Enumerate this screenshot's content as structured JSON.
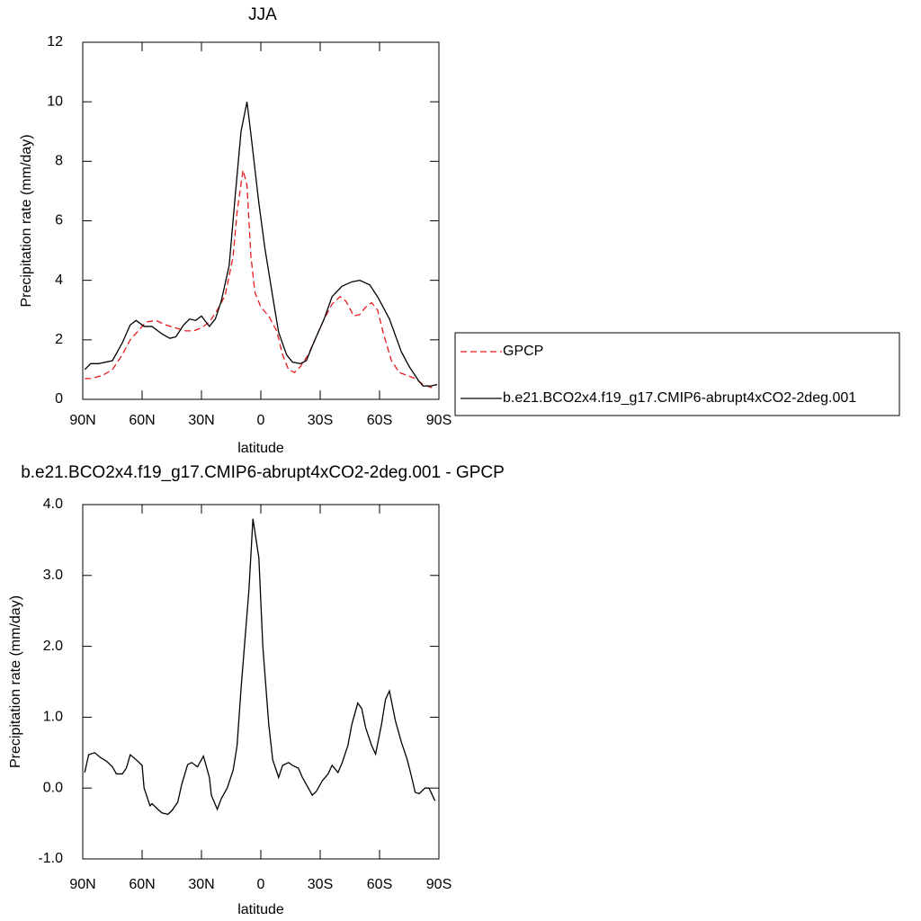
{
  "chart_data": [
    {
      "type": "line",
      "title": "JJA",
      "xlabel": "latitude",
      "ylabel": "Precipitation rate (mm/day)",
      "xlim": [
        90,
        -90
      ],
      "ylim": [
        0,
        12
      ],
      "xticks": [
        {
          "value": 90,
          "label": "90N"
        },
        {
          "value": 60,
          "label": "60N"
        },
        {
          "value": 30,
          "label": "30N"
        },
        0,
        {
          "value": -30,
          "label": "30S"
        },
        {
          "value": -60,
          "label": "60S"
        },
        {
          "value": -90,
          "label": "90S"
        }
      ],
      "yticks": [
        0,
        2,
        4,
        6,
        8,
        10,
        12
      ],
      "legend": "right",
      "series": [
        {
          "name": "GPCP",
          "color": "#e8191c",
          "dash": "dashed",
          "x": [
            89,
            86,
            80,
            75,
            70,
            66,
            62,
            58,
            53,
            48,
            43,
            38,
            34,
            30,
            26,
            22,
            18,
            14,
            12,
            9,
            7,
            5,
            3,
            0,
            -4,
            -8,
            -11,
            -14,
            -17,
            -20,
            -24,
            -28,
            -32,
            -36,
            -40,
            -43,
            -47,
            -50,
            -53,
            -56,
            -59,
            -62,
            -66,
            -70,
            -74,
            -78,
            -82,
            -86,
            -89
          ],
          "values": [
            0.7,
            0.7,
            0.8,
            1.0,
            1.5,
            2.0,
            2.3,
            2.6,
            2.65,
            2.5,
            2.4,
            2.3,
            2.3,
            2.4,
            2.6,
            3.0,
            3.5,
            4.8,
            6.3,
            7.7,
            7.2,
            4.8,
            3.6,
            3.1,
            2.8,
            2.3,
            1.5,
            1.0,
            0.9,
            1.1,
            1.5,
            2.1,
            2.7,
            3.2,
            3.45,
            3.3,
            2.8,
            2.85,
            3.1,
            3.25,
            3.0,
            2.2,
            1.3,
            0.9,
            0.8,
            0.7,
            0.5,
            0.4,
            0.5
          ]
        },
        {
          "name": "b.e21.BCO2x4.f19_g17.CMIP6-abrupt4xCO2-2deg.001",
          "color": "#000000",
          "dash": "solid",
          "x": [
            89,
            86,
            82,
            75,
            70,
            66,
            63,
            59,
            55,
            50,
            46,
            43,
            39,
            36,
            33,
            30,
            26,
            23,
            20,
            16,
            13,
            10,
            7,
            5,
            1,
            -2,
            -6,
            -9,
            -13,
            -16,
            -20,
            -23,
            -27,
            -32,
            -36,
            -41,
            -46,
            -50,
            -55,
            -59,
            -65,
            -71,
            -75,
            -80,
            -82,
            -86,
            -89
          ],
          "values": [
            1.0,
            1.2,
            1.2,
            1.3,
            1.9,
            2.5,
            2.65,
            2.45,
            2.45,
            2.2,
            2.05,
            2.1,
            2.5,
            2.7,
            2.65,
            2.8,
            2.45,
            2.7,
            3.3,
            4.5,
            6.8,
            9.0,
            10.0,
            8.9,
            6.6,
            5.1,
            3.45,
            2.25,
            1.5,
            1.25,
            1.2,
            1.3,
            1.95,
            2.7,
            3.45,
            3.8,
            3.95,
            4.0,
            3.85,
            3.45,
            2.7,
            1.6,
            1.1,
            0.6,
            0.45,
            0.45,
            0.5
          ]
        }
      ]
    },
    {
      "type": "line",
      "title": "b.e21.BCO2x4.f19_g17.CMIP6-abrupt4xCO2-2deg.001 - GPCP",
      "xlabel": "latitude",
      "ylabel": "Precipitation rate (mm/day)",
      "xlim": [
        90,
        -90
      ],
      "ylim": [
        -1,
        4
      ],
      "xticks": [
        {
          "value": 90,
          "label": "90N"
        },
        {
          "value": 60,
          "label": "60N"
        },
        {
          "value": 30,
          "label": "30N"
        },
        0,
        {
          "value": -30,
          "label": "30S"
        },
        {
          "value": -60,
          "label": "60S"
        },
        {
          "value": -90,
          "label": "90S"
        }
      ],
      "yticks": [
        {
          "value": -1,
          "label": "-1.0"
        },
        {
          "value": 0,
          "label": "0.0"
        },
        {
          "value": 1,
          "label": "1.0"
        },
        {
          "value": 2,
          "label": "2.0"
        },
        {
          "value": 3,
          "label": "3.0"
        },
        {
          "value": 4,
          "label": "4.0"
        }
      ],
      "color": "#000000",
      "x": [
        89,
        87,
        84,
        81,
        78,
        75,
        73,
        70,
        68,
        66,
        63,
        60,
        59,
        56,
        55,
        52,
        50,
        47,
        45,
        42,
        40,
        37,
        35,
        32,
        29,
        26,
        25,
        22,
        20,
        17,
        14,
        12,
        10,
        6,
        4,
        1,
        -1,
        -4,
        -6,
        -9,
        -11,
        -14,
        -16,
        -19,
        -21,
        -24,
        -26,
        -28,
        -31,
        -34,
        -36,
        -39,
        -41,
        -44,
        -46,
        -49,
        -51,
        -53,
        -56,
        -58,
        -61,
        -63,
        -65,
        -68,
        -71,
        -74,
        -76,
        -78,
        -80,
        -83,
        -85,
        -88
      ],
      "values": [
        0.22,
        0.47,
        0.5,
        0.43,
        0.38,
        0.3,
        0.2,
        0.2,
        0.28,
        0.47,
        0.4,
        0.32,
        0.0,
        -0.25,
        -0.22,
        -0.3,
        -0.35,
        -0.37,
        -0.32,
        -0.2,
        0.05,
        0.33,
        0.36,
        0.3,
        0.45,
        0.15,
        -0.1,
        -0.3,
        -0.15,
        0.0,
        0.25,
        0.6,
        1.4,
        2.8,
        3.8,
        3.25,
        2.0,
        0.9,
        0.4,
        0.15,
        0.32,
        0.36,
        0.32,
        0.28,
        0.15,
        0.0,
        -0.1,
        -0.05,
        0.1,
        0.2,
        0.32,
        0.22,
        0.35,
        0.6,
        0.9,
        1.2,
        1.12,
        0.85,
        0.6,
        0.48,
        0.9,
        1.25,
        1.37,
        0.95,
        0.65,
        0.4,
        0.18,
        -0.06,
        -0.08,
        0.0,
        0.0,
        -0.18
      ]
    }
  ]
}
